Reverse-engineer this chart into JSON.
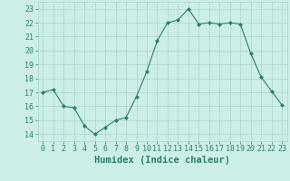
{
  "x": [
    0,
    1,
    2,
    3,
    4,
    5,
    6,
    7,
    8,
    9,
    10,
    11,
    12,
    13,
    14,
    15,
    16,
    17,
    18,
    19,
    20,
    21,
    22,
    23
  ],
  "y": [
    17.0,
    17.2,
    16.0,
    15.9,
    14.6,
    14.0,
    14.5,
    15.0,
    15.2,
    16.7,
    18.5,
    20.7,
    22.0,
    22.2,
    23.0,
    21.9,
    22.0,
    21.9,
    22.0,
    21.9,
    19.8,
    18.1,
    17.1,
    16.1
  ],
  "xlabel": "Humidex (Indice chaleur)",
  "xlim": [
    -0.5,
    23.5
  ],
  "ylim": [
    13.5,
    23.5
  ],
  "yticks": [
    14,
    15,
    16,
    17,
    18,
    19,
    20,
    21,
    22,
    23
  ],
  "xticks": [
    0,
    1,
    2,
    3,
    4,
    5,
    6,
    7,
    8,
    9,
    10,
    11,
    12,
    13,
    14,
    15,
    16,
    17,
    18,
    19,
    20,
    21,
    22,
    23
  ],
  "line_color": "#2e7d6e",
  "marker": "D",
  "marker_size": 2.0,
  "bg_color": "#cceee8",
  "grid_color": "#aad4cc",
  "tick_label_color": "#2e7d6e",
  "xlabel_fontsize": 7.5,
  "tick_fontsize": 6.0
}
